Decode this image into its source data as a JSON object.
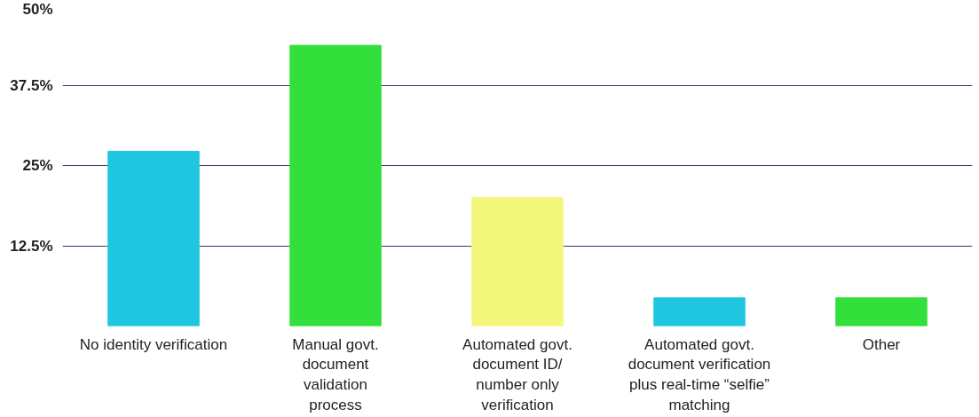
{
  "chart_data": {
    "type": "bar",
    "categories": [
      "No identity verification",
      "Manual govt.\ndocument\nvalidation\nprocess",
      "Automated govt.\ndocument ID/\nnumber only\nverification",
      "Automated govt.\ndocument verification\nplus real-time “selfie”\nmatching",
      "Other"
    ],
    "values": [
      27.2,
      43.7,
      20,
      4.4,
      4.4
    ],
    "colors": [
      "#1fc6e0",
      "#33e03b",
      "#f3f77b",
      "#1fc6e0",
      "#33e03b"
    ],
    "ylim": [
      0,
      50
    ],
    "yticks": [
      {
        "value": 12.5,
        "label": "12.5%"
      },
      {
        "value": 25,
        "label": "25%"
      },
      {
        "value": 37.5,
        "label": "37.5%"
      },
      {
        "value": 50,
        "label": "50%"
      }
    ],
    "grid": "y"
  }
}
